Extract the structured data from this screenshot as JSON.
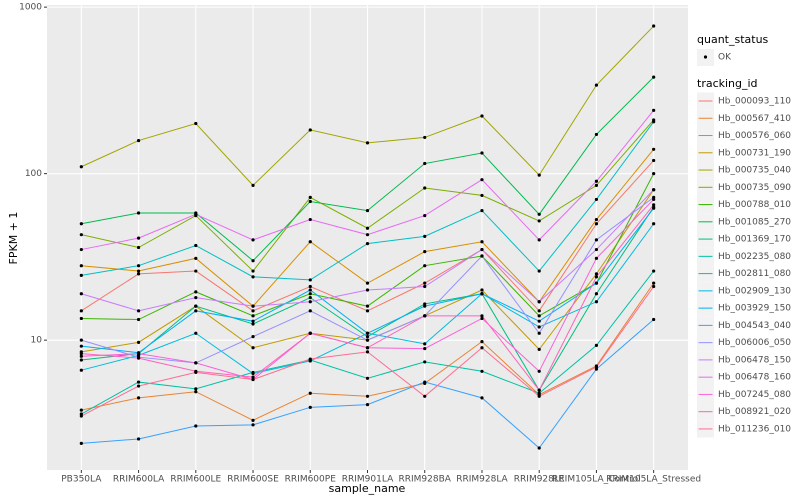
{
  "chart_data": {
    "type": "line",
    "x_label": "sample_name",
    "y_label": "FPKM + 1",
    "log_y": true,
    "grid": true,
    "categories": [
      "PB350LA",
      "RRIM600LA",
      "RRIM600LE",
      "RRIM600SE",
      "RRIM600PE",
      "RRIM901LA",
      "RRIM928BA",
      "RRIM928LA",
      "RRIM928LE",
      "RRIM105LA_Control",
      "RRIM105LA_Stressed"
    ],
    "ylim": [
      1.66,
      1030
    ],
    "yticks": [
      10,
      100,
      1000
    ],
    "point_legend_title": "quant_status",
    "point_legend_labels": [
      "OK"
    ],
    "legend_title": "tracking_id",
    "series": [
      {
        "name": "Hb_000093_110",
        "color": "#F8766D",
        "values": [
          15,
          25,
          26,
          15,
          21,
          15,
          22,
          35,
          15,
          50,
          120
        ]
      },
      {
        "name": "Hb_000567_410",
        "color": "#EA8331",
        "values": [
          3.8,
          4.5,
          4.9,
          3.3,
          4.8,
          4.6,
          5.5,
          9.8,
          4.7,
          7,
          22
        ]
      },
      {
        "name": "Hb_000576_060",
        "color": "#D89000",
        "values": [
          28,
          26,
          31,
          16,
          39,
          22,
          34,
          39,
          17,
          53,
          140
        ]
      },
      {
        "name": "Hb_000731_190",
        "color": "#C09B00",
        "values": [
          8.5,
          9.7,
          16,
          9,
          11,
          10,
          14,
          20,
          8.8,
          25,
          80
        ]
      },
      {
        "name": "Hb_000735_040",
        "color": "#A3A500",
        "values": [
          110,
          158,
          200,
          85,
          183,
          153,
          165,
          222,
          98,
          340,
          770
        ]
      },
      {
        "name": "Hb_000735_090",
        "color": "#7CAE00",
        "values": [
          43,
          36,
          56,
          26,
          72,
          47,
          82,
          74,
          52,
          85,
          210
        ]
      },
      {
        "name": "Hb_000788_010",
        "color": "#39B600",
        "values": [
          13.5,
          13.3,
          19.5,
          14,
          19,
          16,
          28,
          32,
          14,
          22,
          100
        ]
      },
      {
        "name": "Hb_001085_270",
        "color": "#00BB4E",
        "values": [
          50,
          58,
          58,
          30,
          68,
          60,
          115,
          133,
          57,
          172,
          380
        ]
      },
      {
        "name": "Hb_001369_170",
        "color": "#00BF7D",
        "values": [
          7.6,
          8.3,
          16,
          12.5,
          18,
          10.5,
          16.5,
          19,
          5,
          19,
          63
        ]
      },
      {
        "name": "Hb_002235_080",
        "color": "#00C1A3",
        "values": [
          3.6,
          5.6,
          5.1,
          6.4,
          7.6,
          5.9,
          7.4,
          6.5,
          4.8,
          9.3,
          26
        ]
      },
      {
        "name": "Hb_002811_080",
        "color": "#00BFC4",
        "values": [
          24.5,
          28,
          37,
          24,
          23,
          38,
          42,
          60,
          26,
          70,
          205
        ]
      },
      {
        "name": "Hb_002909_130",
        "color": "#00BAE0",
        "values": [
          6.6,
          8.1,
          11,
          6.3,
          7.5,
          11,
          9.5,
          19,
          12,
          17,
          50
        ]
      },
      {
        "name": "Hb_003929_150",
        "color": "#00B0F6",
        "values": [
          9.2,
          8.4,
          15,
          13,
          20,
          11,
          16,
          19,
          13,
          22,
          62
        ]
      },
      {
        "name": "Hb_004543_040",
        "color": "#35A2FF",
        "values": [
          2.4,
          2.55,
          3.05,
          3.1,
          3.95,
          4.1,
          5.6,
          4.5,
          2.25,
          6.7,
          13.3
        ]
      },
      {
        "name": "Hb_006006_050",
        "color": "#9590FF",
        "values": [
          10,
          7.9,
          7.3,
          10.5,
          15,
          10,
          14,
          32,
          11,
          40,
          72
        ]
      },
      {
        "name": "Hb_006478_150",
        "color": "#C77CFF",
        "values": [
          19,
          15,
          18,
          16,
          17,
          20,
          21,
          35,
          17,
          35,
          80
        ]
      },
      {
        "name": "Hb_006478_160",
        "color": "#E76BF3",
        "values": [
          35,
          41,
          57,
          40,
          53,
          43,
          56,
          92,
          40,
          90,
          240
        ]
      },
      {
        "name": "Hb_007245_080",
        "color": "#FA62DB",
        "values": [
          8,
          8.3,
          7.3,
          5.8,
          11,
          9,
          8.9,
          13.5,
          6.5,
          31,
          70
        ]
      },
      {
        "name": "Hb_008921_020",
        "color": "#FF62BC",
        "values": [
          8.3,
          7.8,
          6.5,
          6,
          11,
          9,
          14,
          14,
          5,
          24,
          65
        ]
      },
      {
        "name": "Hb_011236_010",
        "color": "#FF6C91",
        "values": [
          3.5,
          5.3,
          6.4,
          5.8,
          7.7,
          8.5,
          4.6,
          9,
          4.6,
          6.9,
          21
        ]
      }
    ]
  }
}
